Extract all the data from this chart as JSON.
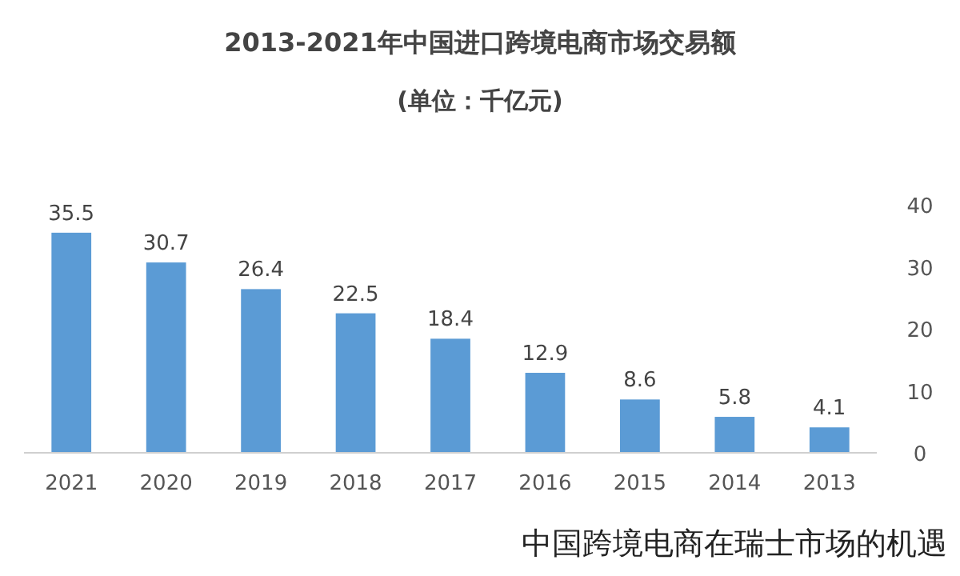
{
  "chart_data": {
    "type": "bar",
    "title": "2013-2021年中国进口跨境电商市场交易额",
    "subtitle": "(单位：千亿元)",
    "categories": [
      "2021",
      "2020",
      "2019",
      "2018",
      "2017",
      "2016",
      "2015",
      "2014",
      "2013"
    ],
    "values": [
      35.5,
      30.7,
      26.4,
      22.5,
      18.4,
      12.9,
      8.6,
      5.8,
      4.1
    ],
    "color": "#5b9bd5",
    "ylim": [
      0,
      40
    ],
    "yticks": [
      0,
      10,
      20,
      30,
      40
    ],
    "data_labels": true,
    "annotations": [
      "中国跨境电商在瑞士市场的机遇"
    ]
  }
}
